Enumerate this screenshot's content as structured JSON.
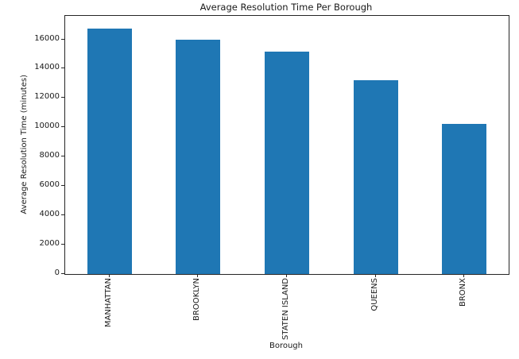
{
  "chart_data": {
    "type": "bar",
    "title": "Average Resolution Time Per Borough",
    "xlabel": "Borough",
    "ylabel": "Average Resolution Time (minutes)",
    "categories": [
      "MANHATTAN",
      "BROOKLYN",
      "STATEN ISLAND",
      "QUEENS",
      "BRONX"
    ],
    "values": [
      16750,
      15950,
      15150,
      13200,
      10250
    ],
    "ylim": [
      0,
      17600
    ],
    "yticks": [
      0,
      2000,
      4000,
      6000,
      8000,
      10000,
      12000,
      14000,
      16000
    ],
    "x_tick_rotation": 90,
    "grid": false,
    "legend_position": "none",
    "bar_color": "#1f77b4",
    "bar_width_fraction": 0.5,
    "axis_color": "#262626",
    "text_color": "#1a1a1a"
  }
}
